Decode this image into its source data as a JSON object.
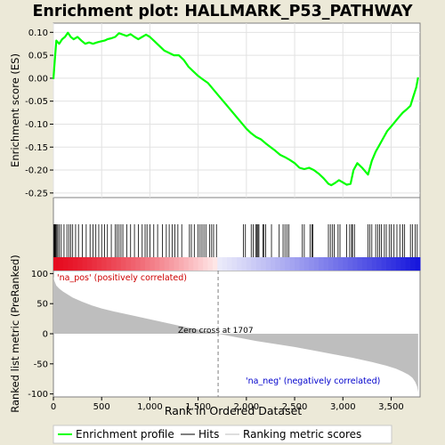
{
  "chart_data": {
    "type": "line",
    "title": "Enrichment plot: HALLMARK_P53_PATHWAY",
    "xlabel": "Rank in Ordered Dataset",
    "x_ticks": [
      0,
      500,
      1000,
      1500,
      2000,
      2500,
      3000,
      3500
    ],
    "x_tick_labels": [
      "0",
      "500",
      "1,000",
      "1,500",
      "2,000",
      "2,500",
      "3,000",
      "3,500"
    ],
    "xlim": [
      0,
      3800
    ],
    "es_panel": {
      "ylabel": "Enrichment score (ES)",
      "ylim": [
        -0.26,
        0.12
      ],
      "y_ticks": [
        0.1,
        0.05,
        0.0,
        -0.05,
        -0.1,
        -0.15,
        -0.2,
        -0.25
      ],
      "y_tick_labels": [
        "0.10",
        "0.05",
        "0.00",
        "-0.05",
        "-0.10",
        "-0.15",
        "-0.20",
        "-0.25"
      ],
      "series": {
        "x": [
          0,
          15,
          30,
          60,
          90,
          120,
          150,
          180,
          210,
          250,
          290,
          330,
          370,
          410,
          450,
          490,
          530,
          560,
          600,
          640,
          680,
          720,
          760,
          800,
          840,
          880,
          920,
          960,
          1000,
          1050,
          1100,
          1150,
          1200,
          1250,
          1300,
          1350,
          1400,
          1450,
          1500,
          1550,
          1600,
          1700,
          1800,
          1900,
          2000,
          2050,
          2100,
          2150,
          2200,
          2250,
          2300,
          2350,
          2400,
          2450,
          2500,
          2550,
          2600,
          2650,
          2700,
          2750,
          2800,
          2850,
          2880,
          2920,
          2960,
          3000,
          3040,
          3080,
          3110,
          3150,
          3200,
          3260,
          3300,
          3340,
          3380,
          3420,
          3460,
          3500,
          3540,
          3580,
          3620,
          3660,
          3700,
          3730,
          3760,
          3780
        ],
        "y": [
          -0.002,
          0.04,
          0.082,
          0.075,
          0.085,
          0.09,
          0.099,
          0.09,
          0.085,
          0.09,
          0.082,
          0.075,
          0.078,
          0.075,
          0.078,
          0.08,
          0.082,
          0.085,
          0.087,
          0.09,
          0.098,
          0.095,
          0.092,
          0.096,
          0.09,
          0.085,
          0.09,
          0.095,
          0.09,
          0.08,
          0.07,
          0.06,
          0.055,
          0.05,
          0.05,
          0.04,
          0.025,
          0.015,
          0.005,
          -0.003,
          -0.01,
          -0.035,
          -0.06,
          -0.085,
          -0.11,
          -0.12,
          -0.128,
          -0.133,
          -0.142,
          -0.15,
          -0.158,
          -0.167,
          -0.172,
          -0.178,
          -0.185,
          -0.195,
          -0.198,
          -0.195,
          -0.2,
          -0.208,
          -0.218,
          -0.23,
          -0.233,
          -0.228,
          -0.222,
          -0.227,
          -0.232,
          -0.23,
          -0.2,
          -0.185,
          -0.195,
          -0.21,
          -0.18,
          -0.16,
          -0.145,
          -0.13,
          -0.115,
          -0.105,
          -0.095,
          -0.085,
          -0.075,
          -0.068,
          -0.06,
          -0.04,
          -0.02,
          0.002
        ]
      }
    },
    "hits": [
      5,
      12,
      18,
      25,
      35,
      45,
      60,
      80,
      110,
      140,
      160,
      180,
      200,
      230,
      260,
      300,
      340,
      380,
      410,
      440,
      470,
      500,
      530,
      560,
      600,
      640,
      660,
      680,
      700,
      720,
      760,
      800,
      840,
      880,
      920,
      950,
      970,
      1000,
      1040,
      1080,
      1130,
      1170,
      1200,
      1230,
      1260,
      1290,
      1330,
      1410,
      1430,
      1460,
      1500,
      1520,
      1540,
      1560,
      1580,
      1620,
      1640,
      1660,
      1690,
      1970,
      1990,
      2050,
      2070,
      2100,
      2110,
      2120,
      2130,
      2170,
      2180,
      2200,
      2260,
      2340,
      2380,
      2400,
      2420,
      2440,
      2580,
      2600,
      2660,
      2680,
      2690,
      2850,
      2870,
      2890,
      2910,
      2950,
      2970,
      3040,
      3070,
      3090,
      3100,
      3120,
      3260,
      3280,
      3300,
      3340,
      3360,
      3380,
      3400,
      3430,
      3450,
      3480,
      3500,
      3530,
      3560,
      3590,
      3620,
      3640,
      3700,
      3720,
      3750,
      3770
    ],
    "metric_panel": {
      "ylabel": "Ranked list metric (PreRanked)",
      "ylim": [
        -105,
        105
      ],
      "y_ticks": [
        100,
        50,
        0,
        -50,
        -100
      ],
      "y_tick_labels": [
        "100",
        "50",
        "0",
        "-50",
        "-100"
      ],
      "profile": {
        "x": [
          0,
          10,
          30,
          60,
          100,
          150,
          200,
          300,
          400,
          500,
          600,
          800,
          1000,
          1200,
          1400,
          1600,
          1707,
          1900,
          2100,
          2300,
          2500,
          2700,
          2900,
          3100,
          3300,
          3450,
          3550,
          3620,
          3680,
          3720,
          3750,
          3770,
          3780
        ],
        "y": [
          95,
          88,
          80,
          75,
          70,
          65,
          60,
          53,
          47,
          42,
          38,
          31,
          24,
          17,
          10,
          4,
          0,
          -6,
          -12,
          -17,
          -22,
          -28,
          -34,
          -40,
          -47,
          -53,
          -58,
          -63,
          -68,
          -73,
          -80,
          -88,
          -97
        ]
      },
      "zero_cross": 1707,
      "zero_cross_label": "Zero cross at 1707",
      "pos_label": "'na_pos' (positively correlated)",
      "neg_label": "'na_neg' (negatively correlated)"
    },
    "legend": {
      "placement": "bottom",
      "entries": [
        "Enrichment profile",
        "Hits",
        "Ranking metric scores"
      ]
    },
    "colors": {
      "es_line": "#00ff00",
      "metric_fill": "#bebebe",
      "pos_text": "#cc0000",
      "neg_text": "#0000cc",
      "hit_line": "#000000"
    }
  }
}
